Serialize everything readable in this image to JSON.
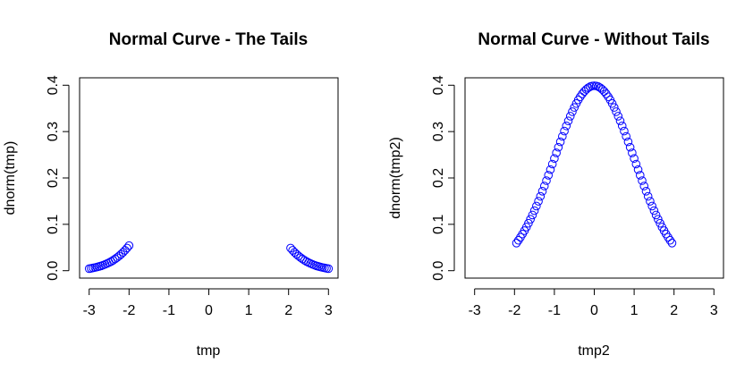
{
  "chart_data": [
    {
      "type": "scatter",
      "title": "Normal Curve - The Tails",
      "xlabel": "tmp",
      "ylabel": "dnorm(tmp)",
      "xlim": [
        -3.24,
        3.24
      ],
      "ylim": [
        -0.016,
        0.416
      ],
      "xticks": [
        "-3",
        "-2",
        "-1",
        "0",
        "1",
        "2",
        "3"
      ],
      "yticks": [
        "0.0",
        "0.1",
        "0.2",
        "0.3",
        "0.4"
      ],
      "point_color": "#0000ff",
      "series": [
        {
          "x": [
            -3.0,
            -2.95,
            -2.9,
            -2.85,
            -2.8,
            -2.75,
            -2.7,
            -2.65,
            -2.6,
            -2.55,
            -2.5,
            -2.45,
            -2.4,
            -2.35,
            -2.3,
            -2.25,
            -2.2,
            -2.15,
            -2.1,
            -2.05,
            -2.0,
            2.05,
            2.1,
            2.15,
            2.2,
            2.25,
            2.3,
            2.35,
            2.4,
            2.45,
            2.5,
            2.55,
            2.6,
            2.65,
            2.7,
            2.75,
            2.8,
            2.85,
            2.9,
            2.95,
            3.0
          ],
          "y": [
            0.0044,
            0.0051,
            0.006,
            0.0069,
            0.0079,
            0.0091,
            0.0104,
            0.0119,
            0.0136,
            0.0154,
            0.0175,
            0.0198,
            0.0224,
            0.0252,
            0.0283,
            0.0317,
            0.0355,
            0.0396,
            0.044,
            0.0488,
            0.054,
            0.0488,
            0.044,
            0.0396,
            0.0355,
            0.0317,
            0.0283,
            0.0252,
            0.0224,
            0.0198,
            0.0175,
            0.0154,
            0.0136,
            0.0119,
            0.0104,
            0.0091,
            0.0079,
            0.0069,
            0.006,
            0.0051,
            0.0044
          ]
        }
      ]
    },
    {
      "type": "scatter",
      "title": "Normal Curve - Without Tails",
      "xlabel": "tmp2",
      "ylabel": "dnorm(tmp2)",
      "xlim": [
        -3.24,
        3.24
      ],
      "ylim": [
        -0.016,
        0.416
      ],
      "xticks": [
        "-3",
        "-2",
        "-1",
        "0",
        "1",
        "2",
        "3"
      ],
      "yticks": [
        "0.0",
        "0.1",
        "0.2",
        "0.3",
        "0.4"
      ],
      "point_color": "#0000ff",
      "series": [
        {
          "x": [
            -1.95,
            -1.9,
            -1.85,
            -1.8,
            -1.75,
            -1.7,
            -1.65,
            -1.6,
            -1.55,
            -1.5,
            -1.45,
            -1.4,
            -1.35,
            -1.3,
            -1.25,
            -1.2,
            -1.15,
            -1.1,
            -1.05,
            -1.0,
            -0.95,
            -0.9,
            -0.85,
            -0.8,
            -0.75,
            -0.7,
            -0.65,
            -0.6,
            -0.55,
            -0.5,
            -0.45,
            -0.4,
            -0.35,
            -0.3,
            -0.25,
            -0.2,
            -0.15,
            -0.1,
            -0.05,
            0.0,
            0.05,
            0.1,
            0.15,
            0.2,
            0.25,
            0.3,
            0.35,
            0.4,
            0.45,
            0.5,
            0.55,
            0.6,
            0.65,
            0.7,
            0.75,
            0.8,
            0.85,
            0.9,
            0.95,
            1.0,
            1.05,
            1.1,
            1.15,
            1.2,
            1.25,
            1.3,
            1.35,
            1.4,
            1.45,
            1.5,
            1.55,
            1.6,
            1.65,
            1.7,
            1.75,
            1.8,
            1.85,
            1.9,
            1.95
          ],
          "y": [
            0.0596,
            0.0656,
            0.0721,
            0.079,
            0.0863,
            0.094,
            0.1023,
            0.1109,
            0.12,
            0.1295,
            0.1394,
            0.1497,
            0.1604,
            0.1714,
            0.1826,
            0.1942,
            0.2059,
            0.2179,
            0.2299,
            0.242,
            0.2541,
            0.2661,
            0.278,
            0.2897,
            0.3011,
            0.3123,
            0.323,
            0.3332,
            0.3429,
            0.3521,
            0.3605,
            0.3683,
            0.3752,
            0.3814,
            0.3867,
            0.391,
            0.3945,
            0.397,
            0.3984,
            0.3989,
            0.3984,
            0.397,
            0.3945,
            0.391,
            0.3867,
            0.3814,
            0.3752,
            0.3683,
            0.3605,
            0.3521,
            0.3429,
            0.3332,
            0.323,
            0.3123,
            0.3011,
            0.2897,
            0.278,
            0.2661,
            0.2541,
            0.242,
            0.2299,
            0.2179,
            0.2059,
            0.1942,
            0.1826,
            0.1714,
            0.1604,
            0.1497,
            0.1394,
            0.1295,
            0.12,
            0.1109,
            0.1023,
            0.094,
            0.0863,
            0.079,
            0.0721,
            0.0656,
            0.0596
          ]
        }
      ]
    }
  ]
}
